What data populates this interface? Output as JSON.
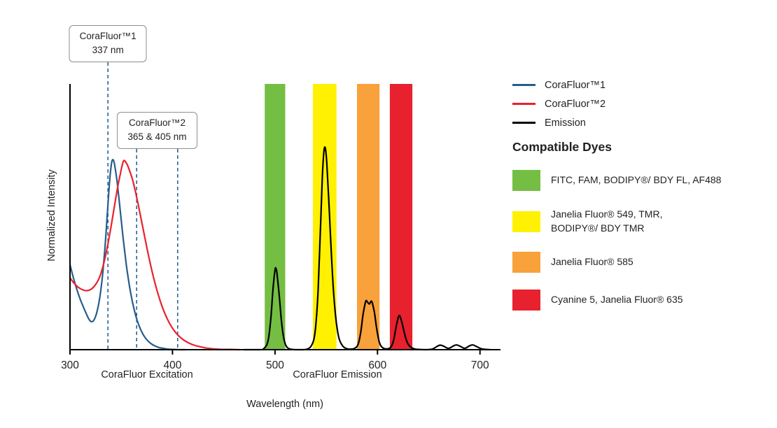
{
  "legend": {
    "items": [
      {
        "label": "CoraFluor™1",
        "color": "#275D8C"
      },
      {
        "label": "CoraFluor™2",
        "color": "#E8222D"
      },
      {
        "label": "Emission",
        "color": "#000000"
      }
    ]
  },
  "dyes": {
    "heading": "Compatible Dyes",
    "items": [
      {
        "name": "green",
        "color": "#74BE43",
        "label": "FITC, FAM, BODIPY®/ BDY FL, AF488"
      },
      {
        "name": "yellow",
        "color": "#FFF101",
        "label": "Janelia Fluor® 549, TMR,\nBODIPY®/ BDY TMR"
      },
      {
        "name": "orange",
        "color": "#F9A13A",
        "label": "Janelia Fluor® 585"
      },
      {
        "name": "red",
        "color": "#E8212E",
        "label": "Cyanine 5, Janelia Fluor® 635"
      }
    ]
  },
  "chart_data": {
    "type": "line",
    "xlabel": "Wavelength (nm)",
    "ylabel": "Normalized Intensity",
    "x_ticks": [
      300,
      400,
      500,
      600,
      700
    ],
    "xlim": [
      300,
      720
    ],
    "ylim": [
      0,
      1
    ],
    "grid": false,
    "legend_position": "top-right",
    "x_axis_sublabels": [
      {
        "text": "CoraFluor Excitation"
      },
      {
        "text": "CoraFluor Emission"
      }
    ],
    "annotations": [
      {
        "label": "CoraFluor™1\n337 nm",
        "lines_nm": [
          337
        ]
      },
      {
        "label": "CoraFluor™2\n365 & 405 nm",
        "lines_nm": [
          365,
          405
        ]
      }
    ],
    "annotation_line_color": "#2A6496",
    "filter_bands": [
      {
        "name": "green",
        "color": "#74BE43",
        "from_nm": 490,
        "to_nm": 510
      },
      {
        "name": "yellow",
        "color": "#FFF101",
        "from_nm": 537,
        "to_nm": 560
      },
      {
        "name": "orange",
        "color": "#F9A13A",
        "from_nm": 580,
        "to_nm": 602
      },
      {
        "name": "red",
        "color": "#E8212E",
        "from_nm": 612,
        "to_nm": 634
      }
    ],
    "series": [
      {
        "name": "CoraFluor™1",
        "role": "excitation",
        "color": "#275D8C",
        "points": [
          [
            300,
            0.32
          ],
          [
            303,
            0.275
          ],
          [
            306,
            0.235
          ],
          [
            309,
            0.2
          ],
          [
            312,
            0.17
          ],
          [
            315,
            0.143
          ],
          [
            318,
            0.118
          ],
          [
            320,
            0.107
          ],
          [
            322,
            0.106
          ],
          [
            324,
            0.116
          ],
          [
            326,
            0.138
          ],
          [
            328,
            0.172
          ],
          [
            330,
            0.222
          ],
          [
            332,
            0.29
          ],
          [
            334,
            0.378
          ],
          [
            336,
            0.487
          ],
          [
            337,
            0.545
          ],
          [
            338,
            0.6
          ],
          [
            339,
            0.65
          ],
          [
            340,
            0.688
          ],
          [
            341,
            0.71
          ],
          [
            342,
            0.715
          ],
          [
            343,
            0.705
          ],
          [
            344,
            0.685
          ],
          [
            346,
            0.63
          ],
          [
            348,
            0.56
          ],
          [
            350,
            0.487
          ],
          [
            352,
            0.415
          ],
          [
            355,
            0.318
          ],
          [
            358,
            0.24
          ],
          [
            361,
            0.178
          ],
          [
            364,
            0.13
          ],
          [
            367,
            0.094
          ],
          [
            370,
            0.067
          ],
          [
            373,
            0.047
          ],
          [
            376,
            0.033
          ],
          [
            379,
            0.023
          ],
          [
            383,
            0.014
          ],
          [
            387,
            0.008
          ],
          [
            391,
            0.005
          ],
          [
            396,
            0.002
          ],
          [
            401,
            0.001
          ],
          [
            407,
            0
          ],
          [
            413,
            0
          ]
        ]
      },
      {
        "name": "CoraFluor™2",
        "role": "excitation",
        "color": "#E8222D",
        "points": [
          [
            300,
            0.27
          ],
          [
            304,
            0.25
          ],
          [
            308,
            0.235
          ],
          [
            312,
            0.226
          ],
          [
            316,
            0.222
          ],
          [
            320,
            0.226
          ],
          [
            324,
            0.24
          ],
          [
            328,
            0.265
          ],
          [
            331,
            0.297
          ],
          [
            334,
            0.342
          ],
          [
            337,
            0.398
          ],
          [
            340,
            0.462
          ],
          [
            343,
            0.532
          ],
          [
            345,
            0.578
          ],
          [
            347,
            0.622
          ],
          [
            349,
            0.66
          ],
          [
            351,
            0.695
          ],
          [
            352,
            0.708
          ],
          [
            353,
            0.712
          ],
          [
            354,
            0.708
          ],
          [
            356,
            0.695
          ],
          [
            358,
            0.675
          ],
          [
            361,
            0.64
          ],
          [
            364,
            0.592
          ],
          [
            367,
            0.538
          ],
          [
            370,
            0.48
          ],
          [
            373,
            0.422
          ],
          [
            376,
            0.365
          ],
          [
            379,
            0.312
          ],
          [
            382,
            0.264
          ],
          [
            385,
            0.221
          ],
          [
            389,
            0.172
          ],
          [
            393,
            0.132
          ],
          [
            397,
            0.1
          ],
          [
            401,
            0.075
          ],
          [
            406,
            0.052
          ],
          [
            411,
            0.036
          ],
          [
            416,
            0.025
          ],
          [
            421,
            0.017
          ],
          [
            427,
            0.011
          ],
          [
            433,
            0.006
          ],
          [
            440,
            0.003
          ],
          [
            448,
            0.001
          ],
          [
            456,
            0.001
          ],
          [
            465,
            0
          ]
        ]
      },
      {
        "name": "Emission",
        "role": "emission",
        "color": "#000000",
        "points": [
          [
            470,
            0
          ],
          [
            486,
            0
          ],
          [
            489,
            0.004
          ],
          [
            492,
            0.018
          ],
          [
            494,
            0.05
          ],
          [
            496,
            0.12
          ],
          [
            498,
            0.225
          ],
          [
            500,
            0.3
          ],
          [
            501,
            0.305
          ],
          [
            502,
            0.285
          ],
          [
            504,
            0.21
          ],
          [
            506,
            0.12
          ],
          [
            508,
            0.055
          ],
          [
            510,
            0.022
          ],
          [
            512,
            0.008
          ],
          [
            515,
            0.002
          ],
          [
            520,
            0
          ],
          [
            528,
            0
          ],
          [
            532,
            0.003
          ],
          [
            535,
            0.012
          ],
          [
            538,
            0.04
          ],
          [
            540,
            0.1
          ],
          [
            542,
            0.22
          ],
          [
            544,
            0.42
          ],
          [
            546,
            0.63
          ],
          [
            547,
            0.71
          ],
          [
            548,
            0.755
          ],
          [
            549,
            0.76
          ],
          [
            550,
            0.73
          ],
          [
            551,
            0.67
          ],
          [
            553,
            0.52
          ],
          [
            555,
            0.36
          ],
          [
            557,
            0.225
          ],
          [
            559,
            0.13
          ],
          [
            561,
            0.07
          ],
          [
            563,
            0.036
          ],
          [
            566,
            0.014
          ],
          [
            569,
            0.005
          ],
          [
            573,
            0.002
          ],
          [
            577,
            0.004
          ],
          [
            580,
            0.012
          ],
          [
            582,
            0.032
          ],
          [
            584,
            0.075
          ],
          [
            586,
            0.135
          ],
          [
            588,
            0.175
          ],
          [
            589,
            0.185
          ],
          [
            590,
            0.18
          ],
          [
            592,
            0.172
          ],
          [
            593,
            0.178
          ],
          [
            594,
            0.183
          ],
          [
            595,
            0.175
          ],
          [
            597,
            0.14
          ],
          [
            599,
            0.085
          ],
          [
            601,
            0.04
          ],
          [
            603,
            0.016
          ],
          [
            606,
            0.005
          ],
          [
            609,
            0.003
          ],
          [
            612,
            0.006
          ],
          [
            614,
            0.016
          ],
          [
            616,
            0.04
          ],
          [
            618,
            0.082
          ],
          [
            620,
            0.118
          ],
          [
            621,
            0.128
          ],
          [
            622,
            0.125
          ],
          [
            624,
            0.1
          ],
          [
            626,
            0.066
          ],
          [
            628,
            0.038
          ],
          [
            630,
            0.02
          ],
          [
            633,
            0.008
          ],
          [
            636,
            0.003
          ],
          [
            640,
            0.001
          ],
          [
            646,
            0
          ],
          [
            652,
            0.001
          ],
          [
            655,
            0.005
          ],
          [
            658,
            0.012
          ],
          [
            661,
            0.017
          ],
          [
            664,
            0.014
          ],
          [
            667,
            0.008
          ],
          [
            669,
            0.005
          ],
          [
            671,
            0.007
          ],
          [
            674,
            0.014
          ],
          [
            677,
            0.018
          ],
          [
            680,
            0.014
          ],
          [
            683,
            0.008
          ],
          [
            685,
            0.005
          ],
          [
            687,
            0.008
          ],
          [
            690,
            0.015
          ],
          [
            693,
            0.018
          ],
          [
            696,
            0.013
          ],
          [
            699,
            0.007
          ],
          [
            702,
            0.003
          ],
          [
            706,
            0.001
          ],
          [
            710,
            0
          ]
        ]
      }
    ]
  }
}
